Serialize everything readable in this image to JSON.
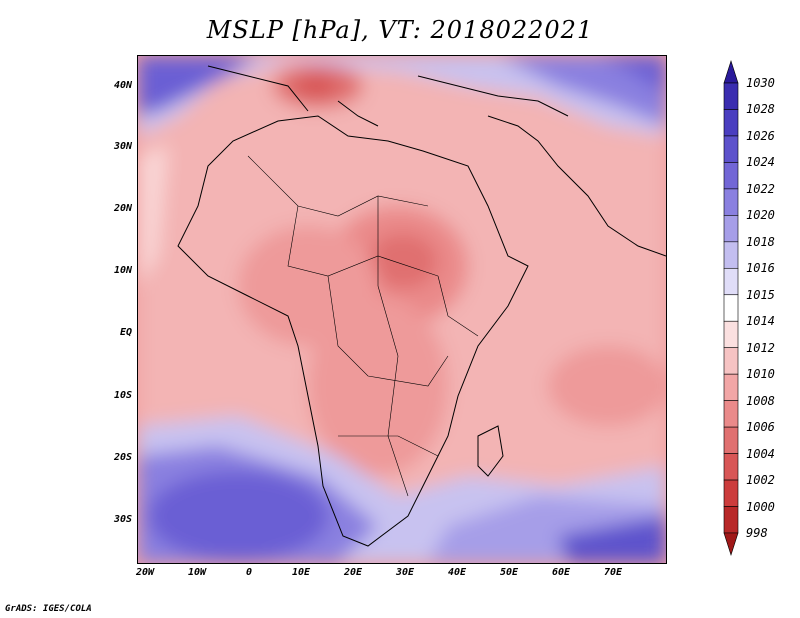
{
  "title": "MSLP [hPa], VT: 2018022021",
  "credit": "GrADS: IGES/COLA",
  "latitude_labels": [
    "40N",
    "30N",
    "20N",
    "10N",
    "EQ",
    "10S",
    "20S",
    "30S"
  ],
  "longitude_labels": [
    "20W",
    "10W",
    "0",
    "10E",
    "20E",
    "30E",
    "40E",
    "50E",
    "60E",
    "70E"
  ],
  "colorbar": {
    "levels": [
      "1030",
      "1028",
      "1026",
      "1024",
      "1022",
      "1020",
      "1018",
      "1016",
      "1015",
      "1014",
      "1012",
      "1010",
      "1008",
      "1006",
      "1004",
      "1002",
      "1000",
      "998"
    ],
    "colors": [
      "#2a1a9a",
      "#3a2db0",
      "#4a3ec0",
      "#5d52cc",
      "#7266d6",
      "#8a80e0",
      "#a69ee8",
      "#c3bef0",
      "#e0ddf8",
      "#ffffff",
      "#fbe0e0",
      "#f6c3c3",
      "#f2a6a6",
      "#ea8a8a",
      "#e07070",
      "#d85656",
      "#cc3c3c",
      "#b82828",
      "#a01818"
    ]
  }
}
